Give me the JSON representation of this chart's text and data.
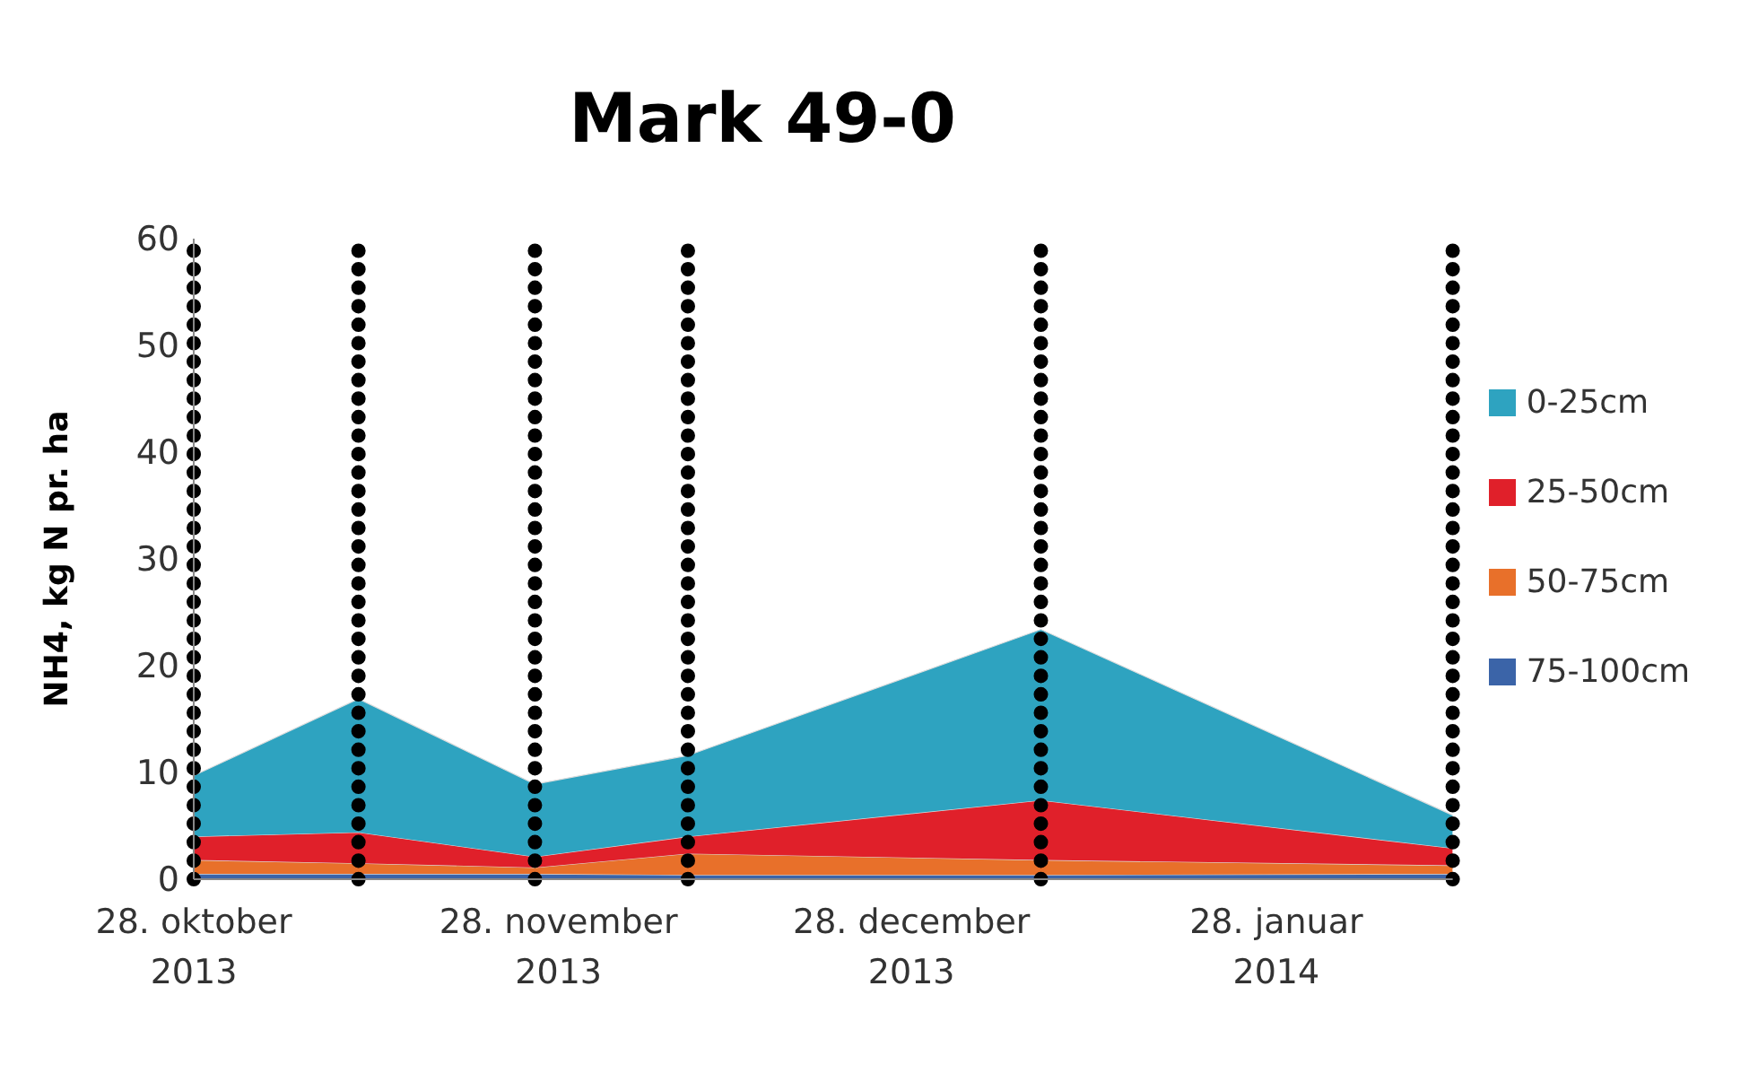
{
  "chart_data": {
    "type": "area",
    "title": "Mark 49-0",
    "ylabel": "NH4, kg N pr. ha",
    "x": [
      "2013-10-28",
      "2013-11-11",
      "2013-11-26",
      "2013-12-09",
      "2014-01-08",
      "2014-02-12"
    ],
    "stacked": true,
    "series": [
      {
        "name": "75-100cm",
        "color": "#3b64a8",
        "values": [
          0.5,
          0.5,
          0.5,
          0.4,
          0.4,
          0.5
        ]
      },
      {
        "name": "50-75cm",
        "color": "#e8702a",
        "values": [
          1.3,
          1.0,
          0.6,
          2.0,
          1.4,
          0.8
        ]
      },
      {
        "name": "25-50cm",
        "color": "#e0202a",
        "values": [
          2.2,
          2.9,
          1.0,
          1.6,
          5.6,
          1.6
        ]
      },
      {
        "name": "0-25cm",
        "color": "#2ea3c0",
        "values": [
          5.7,
          12.5,
          6.8,
          7.6,
          16.0,
          3.1
        ]
      }
    ],
    "xlim": [
      "2013-10-28",
      "2014-02-12"
    ],
    "xticks": [
      {
        "value": "2013-10-28",
        "label": "28. oktober 2013"
      },
      {
        "value": "2013-11-28",
        "label": "28. november 2013"
      },
      {
        "value": "2013-12-28",
        "label": "28. december 2013"
      },
      {
        "value": "2014-01-28",
        "label": "28. januar 2014"
      }
    ],
    "ylim": [
      0,
      60
    ],
    "yticks": [
      0,
      10,
      20,
      30,
      40,
      50,
      60
    ],
    "ref_lines": [
      {
        "axis": "x",
        "value": "2013-10-28",
        "color": "#000000",
        "line_style": "dotted"
      },
      {
        "axis": "x",
        "value": "2013-11-11",
        "color": "#000000",
        "line_style": "dotted"
      },
      {
        "axis": "x",
        "value": "2013-11-26",
        "color": "#000000",
        "line_style": "dotted"
      },
      {
        "axis": "x",
        "value": "2013-12-09",
        "color": "#000000",
        "line_style": "dotted"
      },
      {
        "axis": "x",
        "value": "2014-01-08",
        "color": "#000000",
        "line_style": "dotted"
      },
      {
        "axis": "x",
        "value": "2014-02-12",
        "color": "#000000",
        "line_style": "dotted"
      }
    ],
    "grid": false,
    "legend": "right"
  }
}
